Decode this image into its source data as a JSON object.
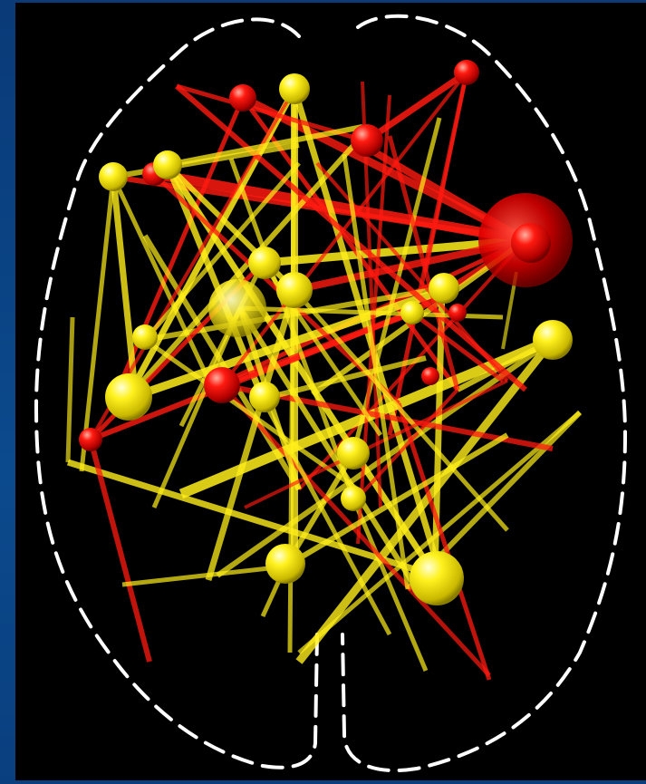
{
  "figure": {
    "type": "brain-connectivity-network",
    "view": "axial-top-down",
    "background_color": "#000000",
    "frame_color": "#0b4a8d",
    "outline_color": "#ffffff",
    "node_groups": [
      {
        "name": "red-nodes",
        "color": "#ff1a10"
      },
      {
        "name": "yellow-nodes",
        "color": "#ffee1a"
      }
    ]
  }
}
